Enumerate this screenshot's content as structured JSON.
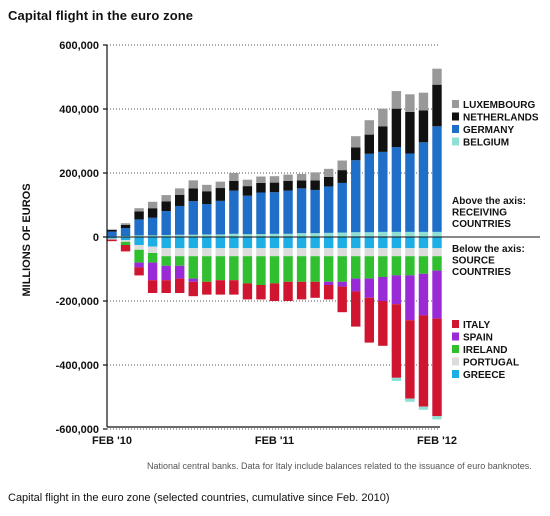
{
  "title": "Capital flight in the euro zone",
  "source_note": "National central banks. Data for Italy include balances related to the issuance of euro banknotes.",
  "caption": "Capital flight in the euro zone (selected countries, cumulative since Feb. 2010)",
  "chart_data": {
    "type": "bar",
    "stacked": true,
    "ylabel": "MILLIONS OF EUROS",
    "ylim": [
      -600000,
      600000
    ],
    "yticks": [
      600000,
      400000,
      200000,
      0,
      -200000,
      -400000,
      -600000
    ],
    "ytick_labels": [
      "600,000",
      "400,000",
      "200,000",
      "0",
      "-200,000",
      "-400,000",
      "-600,000"
    ],
    "x_tick_labels": [
      "FEB '10",
      "FEB '11",
      "FEB '12"
    ],
    "x_tick_index": [
      0,
      12,
      24
    ],
    "grid": "horizontal dotted",
    "annotation_above": "Above the axis:\nRECEIVING\nCOUNTRIES",
    "annotation_below": "Below the axis:\nSOURCE\nCOUNTRIES",
    "positive_series": [
      {
        "name": "BELGIUM",
        "color": "#8ee0d2",
        "values": [
          2000,
          3000,
          5000,
          5000,
          6000,
          7000,
          7000,
          8000,
          8000,
          10000,
          9000,
          9000,
          10000,
          10000,
          12000,
          12000,
          13000,
          14000,
          15000,
          15000,
          16000,
          16000,
          16000,
          16000,
          16000
        ]
      },
      {
        "name": "GERMANY",
        "color": "#1f6ec8",
        "values": [
          15000,
          25000,
          50000,
          55000,
          75000,
          90000,
          105000,
          95000,
          105000,
          135000,
          120000,
          130000,
          130000,
          135000,
          140000,
          135000,
          145000,
          155000,
          225000,
          245000,
          250000,
          265000,
          245000,
          280000,
          330000
        ]
      },
      {
        "name": "NETHERLANDS",
        "color": "#111111",
        "values": [
          5000,
          10000,
          25000,
          30000,
          30000,
          35000,
          40000,
          40000,
          40000,
          30000,
          30000,
          30000,
          30000,
          30000,
          25000,
          30000,
          30000,
          40000,
          40000,
          60000,
          80000,
          120000,
          130000,
          100000,
          130000
        ]
      },
      {
        "name": "LUXEMBOURG",
        "color": "#999999",
        "values": [
          2000,
          5000,
          10000,
          20000,
          20000,
          20000,
          25000,
          20000,
          20000,
          25000,
          20000,
          20000,
          20000,
          20000,
          20000,
          25000,
          25000,
          30000,
          35000,
          45000,
          55000,
          55000,
          55000,
          55000,
          50000
        ]
      }
    ],
    "negative_series": [
      {
        "name": "GREECE",
        "color": "#1eaee6",
        "values": [
          5000,
          10000,
          25000,
          30000,
          35000,
          35000,
          35000,
          35000,
          35000,
          35000,
          35000,
          35000,
          35000,
          35000,
          35000,
          35000,
          35000,
          35000,
          35000,
          35000,
          35000,
          35000,
          35000,
          35000,
          35000
        ]
      },
      {
        "name": "PORTUGAL",
        "color": "#dcdcdc",
        "values": [
          3000,
          5000,
          15000,
          20000,
          25000,
          25000,
          25000,
          25000,
          25000,
          25000,
          25000,
          25000,
          25000,
          25000,
          25000,
          25000,
          25000,
          25000,
          25000,
          25000,
          25000,
          25000,
          25000,
          25000,
          25000
        ]
      },
      {
        "name": "IRELAND",
        "color": "#2fbf2f",
        "values": [
          0,
          10000,
          40000,
          30000,
          30000,
          30000,
          70000,
          80000,
          75000,
          75000,
          85000,
          90000,
          85000,
          80000,
          80000,
          80000,
          80000,
          80000,
          70000,
          70000,
          65000,
          60000,
          60000,
          55000,
          45000
        ]
      },
      {
        "name": "SPAIN",
        "color": "#9a2ad6",
        "values": [
          0,
          0,
          15000,
          55000,
          45000,
          40000,
          10000,
          0,
          0,
          0,
          0,
          0,
          0,
          0,
          0,
          0,
          10000,
          15000,
          40000,
          60000,
          75000,
          90000,
          140000,
          130000,
          150000
        ]
      },
      {
        "name": "ITALY",
        "color": "#cf1530",
        "values": [
          5000,
          20000,
          25000,
          40000,
          40000,
          45000,
          45000,
          40000,
          45000,
          45000,
          50000,
          45000,
          55000,
          60000,
          55000,
          50000,
          45000,
          80000,
          110000,
          140000,
          140000,
          230000,
          245000,
          285000,
          305000
        ]
      }
    ],
    "negative_extras": {
      "color": "#8ee0d2",
      "values": [
        0,
        0,
        0,
        0,
        0,
        0,
        0,
        0,
        0,
        0,
        0,
        0,
        0,
        0,
        0,
        0,
        0,
        0,
        0,
        0,
        0,
        10000,
        10000,
        10000,
        10000
      ]
    },
    "legend_top": [
      "LUXEMBOURG",
      "NETHERLANDS",
      "GERMANY",
      "BELGIUM"
    ],
    "legend_bottom": [
      "ITALY",
      "SPAIN",
      "IRELAND",
      "PORTUGAL",
      "GREECE"
    ]
  }
}
